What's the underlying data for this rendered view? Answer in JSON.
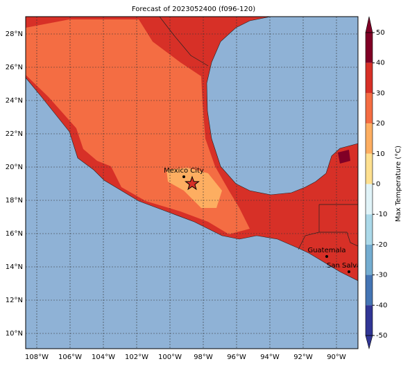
{
  "title": "Forecast of 2023052400 (f096-120)",
  "map": {
    "lon_labels": [
      "108°W",
      "106°W",
      "104°W",
      "102°W",
      "100°W",
      "98°W",
      "96°W",
      "94°W",
      "92°W",
      "90°W"
    ],
    "lat_labels": [
      "28°N",
      "26°N",
      "24°N",
      "22°N",
      "20°N",
      "18°N",
      "16°N",
      "14°N",
      "12°N",
      "10°N"
    ],
    "cities": [
      {
        "name": "Mexico City"
      },
      {
        "name": "Guatemala"
      },
      {
        "name": "San Salvador"
      }
    ]
  },
  "colorbar": {
    "label": "Max Temperature (°C)",
    "ticks": [
      50,
      40,
      30,
      20,
      10,
      0,
      -10,
      -20,
      -30,
      -40,
      -50
    ],
    "colors": [
      "#800026",
      "#d73027",
      "#f46d43",
      "#fdae61",
      "#fee090",
      "#e0f3f8",
      "#abd9e9",
      "#74add1",
      "#4575b4",
      "#313695"
    ]
  }
}
